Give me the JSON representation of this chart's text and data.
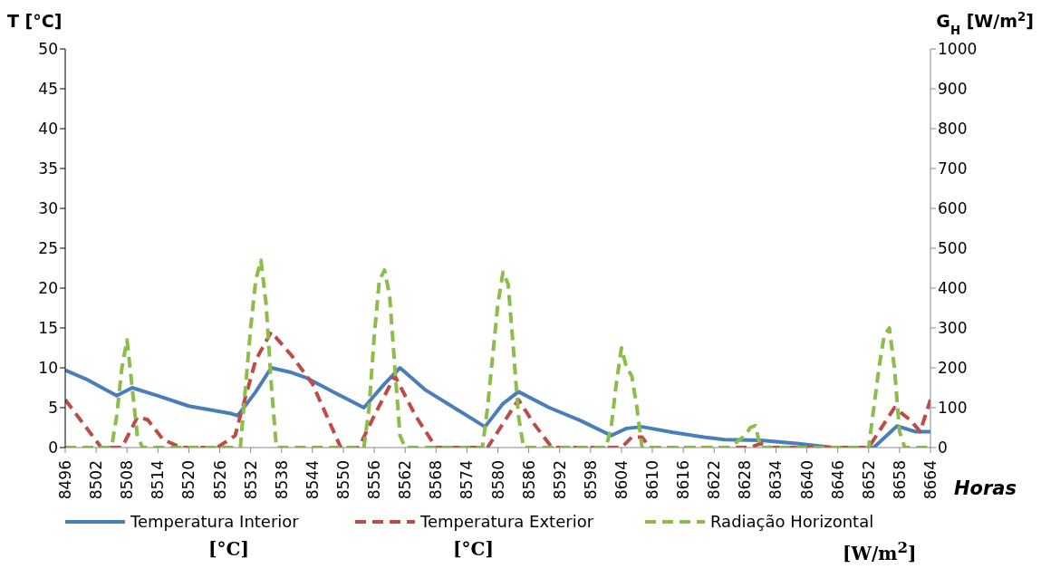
{
  "chart_data": {
    "type": "line",
    "xlabel": "Horas",
    "ylabel": "T [°C]",
    "y2label": "G$_{H}$ [W/m$^{2}$]",
    "xlim": [
      8496,
      8664
    ],
    "xticks": [
      8496,
      8502,
      8508,
      8514,
      8520,
      8526,
      8532,
      8538,
      8544,
      8550,
      8556,
      8562,
      8568,
      8574,
      8580,
      8586,
      8592,
      8598,
      8604,
      8610,
      8616,
      8622,
      8628,
      8634,
      8640,
      8646,
      8652,
      8658,
      8664
    ],
    "ylim": [
      0,
      50
    ],
    "yticks": [
      0,
      5,
      10,
      15,
      20,
      25,
      30,
      35,
      40,
      45,
      50
    ],
    "y2lim": [
      0,
      1000
    ],
    "y2ticks": [
      0,
      100,
      200,
      300,
      400,
      500,
      600,
      700,
      800,
      900,
      1000
    ],
    "legend": "bottom",
    "marker": "none",
    "annotations": [
      "[°C]",
      "[°C]",
      "[W/m$^{2}$]"
    ],
    "series": [
      {
        "name": "Temperatura Interior",
        "color": "#4a7ebb",
        "line_style": "solid",
        "x": [
          8496,
          8500,
          8506,
          8509,
          8514,
          8520,
          8528,
          8529.5,
          8533,
          8536,
          8540,
          8543,
          8548,
          8554,
          8558,
          8561,
          8566,
          8572,
          8577.5,
          8581,
          8584,
          8590,
          8596,
          8602,
          8605,
          8608,
          8614,
          8620,
          8624,
          8631,
          8638,
          8645,
          8653,
          8657.5,
          8661,
          8664
        ],
        "values": [
          9.7,
          8.6,
          6.5,
          7.5,
          6.5,
          5.2,
          4.3,
          4.0,
          7.0,
          10.0,
          9.4,
          8.7,
          7.0,
          5.0,
          8.0,
          10.0,
          7.2,
          4.8,
          2.6,
          5.5,
          7.0,
          5.0,
          3.4,
          1.5,
          2.4,
          2.6,
          1.9,
          1.3,
          1.0,
          0.9,
          0.5,
          0.0,
          0.0,
          2.7,
          2.0,
          2.0
        ]
      },
      {
        "name": "Temperatura Exterior",
        "color": "#be4b48",
        "line_style": "dashed",
        "x": [
          8496,
          8503,
          8507,
          8510,
          8512,
          8515,
          8518.5,
          8525.5,
          8529,
          8530,
          8533,
          8536,
          8540,
          8544,
          8549.5,
          8553,
          8556,
          8560,
          8564,
          8568,
          8578,
          8581,
          8584,
          8587,
          8590.5,
          8604,
          8606,
          8608,
          8609.5,
          8629,
          8631,
          8633,
          8652,
          8655,
          8657,
          8660,
          8662,
          8664
        ],
        "values": [
          6.0,
          0.0,
          0.0,
          3.8,
          3.5,
          1.0,
          0.0,
          0.0,
          1.5,
          4.0,
          11.0,
          14.5,
          11.5,
          8.0,
          0.0,
          0.0,
          4.0,
          9.0,
          4.0,
          0.0,
          0.0,
          3.0,
          6.0,
          3.0,
          0.0,
          0.0,
          1.3,
          1.3,
          0.0,
          0.0,
          0.5,
          0.0,
          0.0,
          3.0,
          5.0,
          3.5,
          2.0,
          6.0
        ]
      },
      {
        "name": "Radiação Horizontal",
        "color": "#8cbd4a",
        "line_style": "dashed",
        "axis": "y2",
        "x": [
          8496,
          8505,
          8506,
          8507,
          8508,
          8509,
          8510,
          8511,
          8530,
          8531,
          8532,
          8533,
          8534,
          8535,
          8536,
          8537,
          8554,
          8555,
          8556,
          8557,
          8558,
          8559,
          8560,
          8561,
          8562,
          8577,
          8578,
          8579,
          8580,
          8581,
          8582,
          8583,
          8584,
          8585,
          8601,
          8602,
          8603,
          8604,
          8605,
          8606,
          8607,
          8608,
          8625,
          8627,
          8628,
          8629,
          8630,
          8631,
          8652,
          8653,
          8654,
          8655,
          8656,
          8657,
          8658,
          8659,
          8664
        ],
        "values": [
          0,
          0,
          80,
          200,
          270,
          150,
          30,
          0,
          0,
          150,
          300,
          420,
          470,
          360,
          160,
          0,
          0,
          100,
          280,
          420,
          445,
          380,
          200,
          30,
          0,
          0,
          100,
          230,
          360,
          440,
          410,
          250,
          80,
          0,
          0,
          50,
          160,
          250,
          200,
          180,
          100,
          0,
          0,
          20,
          30,
          50,
          55,
          0,
          0,
          100,
          200,
          280,
          300,
          200,
          40,
          0,
          0
        ]
      }
    ]
  }
}
